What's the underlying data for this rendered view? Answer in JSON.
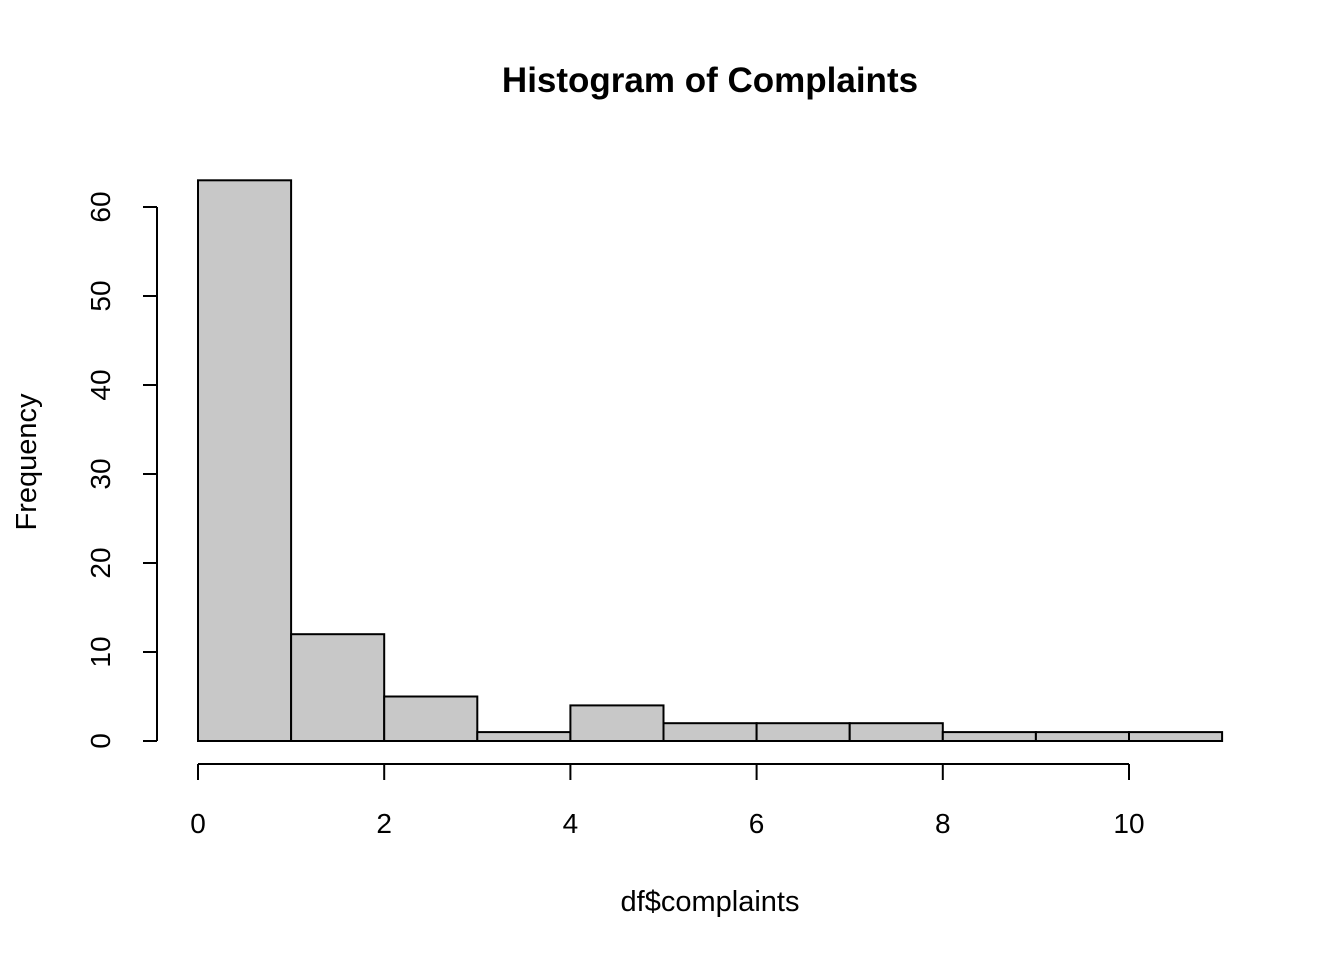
{
  "chart_data": {
    "type": "bar",
    "title": "Histogram of Complaints",
    "xlabel": "df$complaints",
    "ylabel": "Frequency",
    "bins": [
      {
        "start": 0,
        "end": 1,
        "count": 63
      },
      {
        "start": 1,
        "end": 2,
        "count": 12
      },
      {
        "start": 2,
        "end": 3,
        "count": 5
      },
      {
        "start": 3,
        "end": 4,
        "count": 1
      },
      {
        "start": 4,
        "end": 5,
        "count": 4
      },
      {
        "start": 5,
        "end": 6,
        "count": 2
      },
      {
        "start": 6,
        "end": 7,
        "count": 2
      },
      {
        "start": 7,
        "end": 8,
        "count": 2
      },
      {
        "start": 8,
        "end": 9,
        "count": 1
      },
      {
        "start": 9,
        "end": 10,
        "count": 1
      },
      {
        "start": 10,
        "end": 11,
        "count": 1
      }
    ],
    "xlim": [
      0,
      11
    ],
    "ylim": [
      0,
      63
    ],
    "x_ticks": [
      0,
      2,
      4,
      6,
      8,
      10
    ],
    "y_ticks": [
      0,
      10,
      20,
      30,
      40,
      50,
      60
    ],
    "x_tick_labels": [
      "0",
      "2",
      "4",
      "6",
      "8",
      "10"
    ],
    "y_tick_labels": [
      "0",
      "10",
      "20",
      "30",
      "40",
      "50",
      "60"
    ],
    "grid": false,
    "legend": "none",
    "colors": {
      "bar_fill": "#c8c8c8",
      "bar_stroke": "#000000"
    }
  }
}
